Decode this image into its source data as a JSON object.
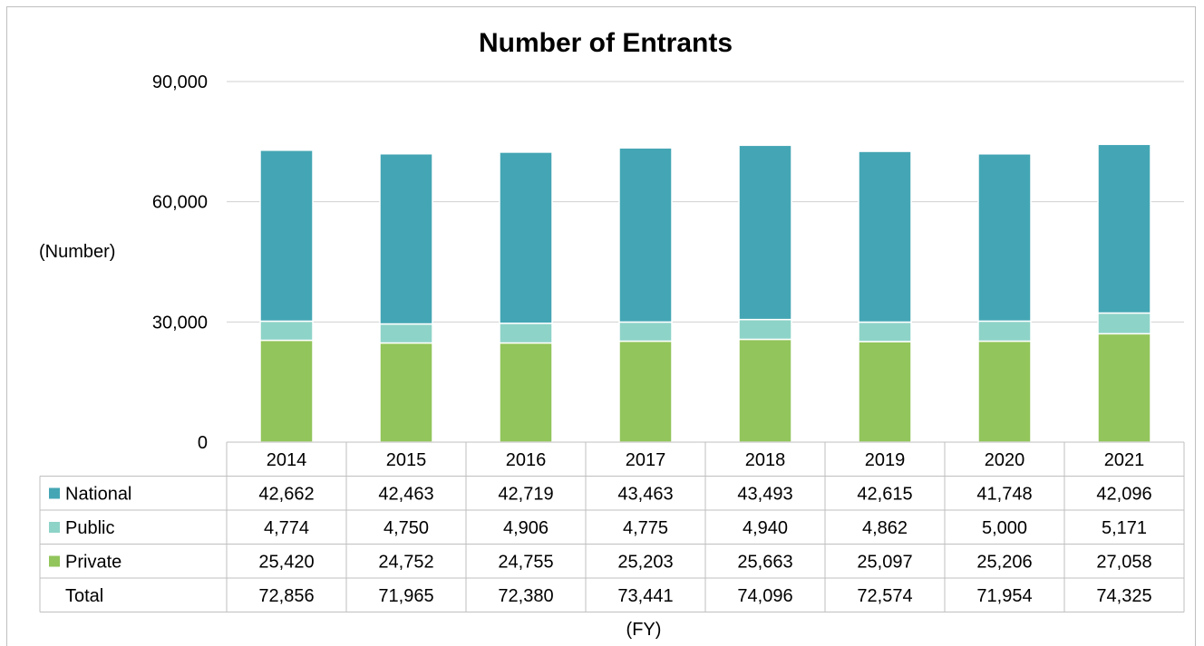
{
  "chart_data": {
    "type": "bar",
    "stacked": true,
    "title": "Number of Entrants",
    "ylabel": "(Number)",
    "xlabel": "(FY)",
    "ylim": [
      0,
      90000
    ],
    "yticks": [
      "0",
      "30,000",
      "60,000",
      "90,000"
    ],
    "ytick_values": [
      0,
      30000,
      60000,
      90000
    ],
    "grid": true,
    "categories": [
      "2014",
      "2015",
      "2016",
      "2017",
      "2018",
      "2019",
      "2020",
      "2021"
    ],
    "series": [
      {
        "name": "National",
        "color": "#44a6b4",
        "values": [
          42662,
          42463,
          42719,
          43463,
          43493,
          42615,
          41748,
          42096
        ],
        "labels": [
          "42,662",
          "42,463",
          "42,719",
          "43,463",
          "43,493",
          "42,615",
          "41,748",
          "42,096"
        ]
      },
      {
        "name": "Public",
        "color": "#8ed3c8",
        "values": [
          4774,
          4750,
          4906,
          4775,
          4940,
          4862,
          5000,
          5171
        ],
        "labels": [
          "4,774",
          "4,750",
          "4,906",
          "4,775",
          "4,940",
          "4,862",
          "5,000",
          "5,171"
        ]
      },
      {
        "name": "Private",
        "color": "#92c55b",
        "values": [
          25420,
          24752,
          24755,
          25203,
          25663,
          25097,
          25206,
          27058
        ],
        "labels": [
          "25,420",
          "24,752",
          "24,755",
          "25,203",
          "25,663",
          "25,097",
          "25,206",
          "27,058"
        ]
      }
    ],
    "total": {
      "name": "Total",
      "labels": [
        "72,856",
        "71,965",
        "72,380",
        "73,441",
        "74,096",
        "72,574",
        "71,954",
        "74,325"
      ]
    },
    "data_table": true
  }
}
